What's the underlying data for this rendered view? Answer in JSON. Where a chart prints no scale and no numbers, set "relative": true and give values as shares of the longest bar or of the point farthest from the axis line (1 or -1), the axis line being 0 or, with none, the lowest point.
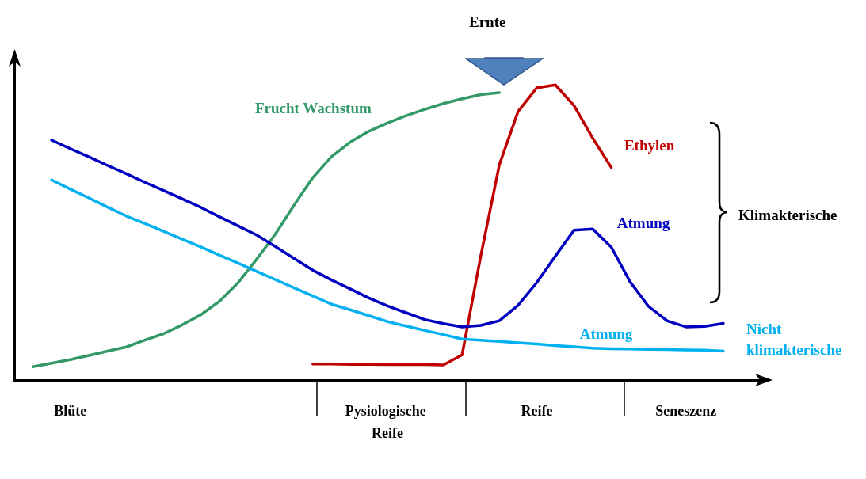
{
  "chart_data": {
    "type": "line",
    "relative": true,
    "categories": [
      null,
      null,
      null,
      "Blüte",
      null,
      null,
      null,
      null,
      null,
      null,
      null,
      null,
      null,
      null,
      null,
      null,
      null,
      null,
      null,
      null,
      "Pysiologische Reife",
      null,
      null,
      null,
      null,
      null,
      null,
      null,
      "Reife",
      null,
      null,
      null,
      null,
      null,
      null,
      null,
      "Seneszenz",
      null,
      null,
      null,
      null
    ],
    "series": [
      {
        "name": "Frucht Wachstum",
        "color": "#339966",
        "values": [
          null,
          0.045,
          0.057,
          0.069,
          0.083,
          0.098,
          0.112,
          0.135,
          0.157,
          0.187,
          0.221,
          0.267,
          0.33,
          0.41,
          0.495,
          0.593,
          0.686,
          0.757,
          0.806,
          0.843,
          0.871,
          0.896,
          0.917,
          0.937,
          0.953,
          0.967,
          0.974,
          null,
          null,
          null,
          null,
          null,
          null,
          null,
          null,
          null,
          null,
          null,
          null,
          null,
          null
        ]
      },
      {
        "name": "Ethylen",
        "color": "#c00000",
        "values": [
          null,
          null,
          null,
          null,
          null,
          null,
          null,
          null,
          null,
          null,
          null,
          null,
          null,
          null,
          null,
          null,
          0.054,
          0.054,
          0.053,
          0.053,
          0.052,
          0.052,
          0.052,
          0.051,
          0.085,
          0.42,
          0.73,
          0.91,
          0.99,
          1,
          0.93,
          0.82,
          0.72,
          null,
          null,
          null,
          null,
          null,
          null,
          null,
          null
        ]
      },
      {
        "name": "Atmung",
        "color": "#0000c0",
        "values": [
          null,
          null,
          0.813,
          0.784,
          0.756,
          0.727,
          0.699,
          0.67,
          0.642,
          0.614,
          0.585,
          0.553,
          0.522,
          0.491,
          0.452,
          0.412,
          0.372,
          0.339,
          0.309,
          0.278,
          0.251,
          0.228,
          0.205,
          0.191,
          0.18,
          0.185,
          0.201,
          0.253,
          0.33,
          0.42,
          0.508,
          0.512,
          0.45,
          0.333,
          0.249,
          0.2,
          0.18,
          0.182,
          0.192,
          null,
          null
        ]
      },
      {
        "name": "Atmung",
        "color": "#00b0f0",
        "values": [
          null,
          null,
          0.678,
          0.647,
          0.617,
          0.586,
          0.556,
          0.53,
          0.504,
          0.477,
          0.451,
          0.423,
          0.396,
          0.368,
          0.34,
          0.312,
          0.285,
          0.257,
          0.238,
          0.218,
          0.198,
          0.183,
          0.168,
          0.154,
          0.139,
          0.135,
          0.131,
          0.126,
          0.122,
          0.117,
          0.113,
          0.108,
          0.106,
          0.105,
          0.104,
          0.103,
          0.102,
          0.101,
          0.098,
          null,
          null
        ]
      }
    ],
    "annotations": [
      "Ernte",
      "Klimakterische",
      "Nicht klimakterische"
    ],
    "line_style": "solid",
    "marker": "none",
    "grid": false,
    "legend": false
  }
}
